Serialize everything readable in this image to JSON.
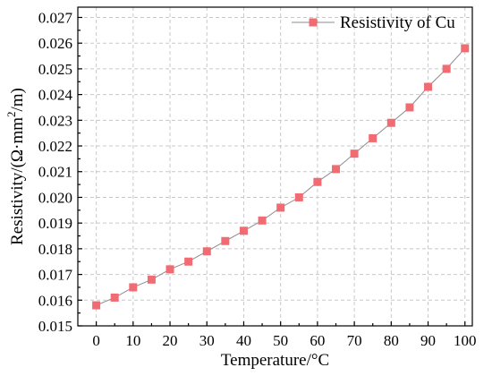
{
  "chart_data": {
    "type": "line",
    "title": "",
    "xlabel": "Temperature/°C",
    "ylabel": {
      "prefix": "Resistivity/(Ω·mm",
      "sup": "2",
      "suffix": "/m)"
    },
    "xlim": [
      -5,
      102
    ],
    "ylim": [
      0.015,
      0.0274
    ],
    "x_ticks": [
      "0",
      "10",
      "20",
      "30",
      "40",
      "50",
      "60",
      "70",
      "80",
      "90",
      "100"
    ],
    "y_ticks": [
      "0.015",
      "0.016",
      "0.017",
      "0.018",
      "0.019",
      "0.020",
      "0.021",
      "0.022",
      "0.023",
      "0.024",
      "0.025",
      "0.026",
      "0.027"
    ],
    "grid": true,
    "legend_position": "top-right",
    "series": [
      {
        "name": "Resistivity of Cu",
        "marker": "square",
        "marker_color": "#f06c72",
        "line_color": "#8c8c8c",
        "x": [
          0,
          5,
          10,
          15,
          20,
          25,
          30,
          35,
          40,
          45,
          50,
          55,
          60,
          65,
          70,
          75,
          80,
          85,
          90,
          95,
          100
        ],
        "y": [
          0.0158,
          0.0161,
          0.0165,
          0.0168,
          0.0172,
          0.0175,
          0.0179,
          0.0183,
          0.0187,
          0.0191,
          0.0196,
          0.02,
          0.0206,
          0.0211,
          0.0217,
          0.0223,
          0.0229,
          0.0235,
          0.0243,
          0.025,
          0.0258
        ]
      }
    ]
  }
}
